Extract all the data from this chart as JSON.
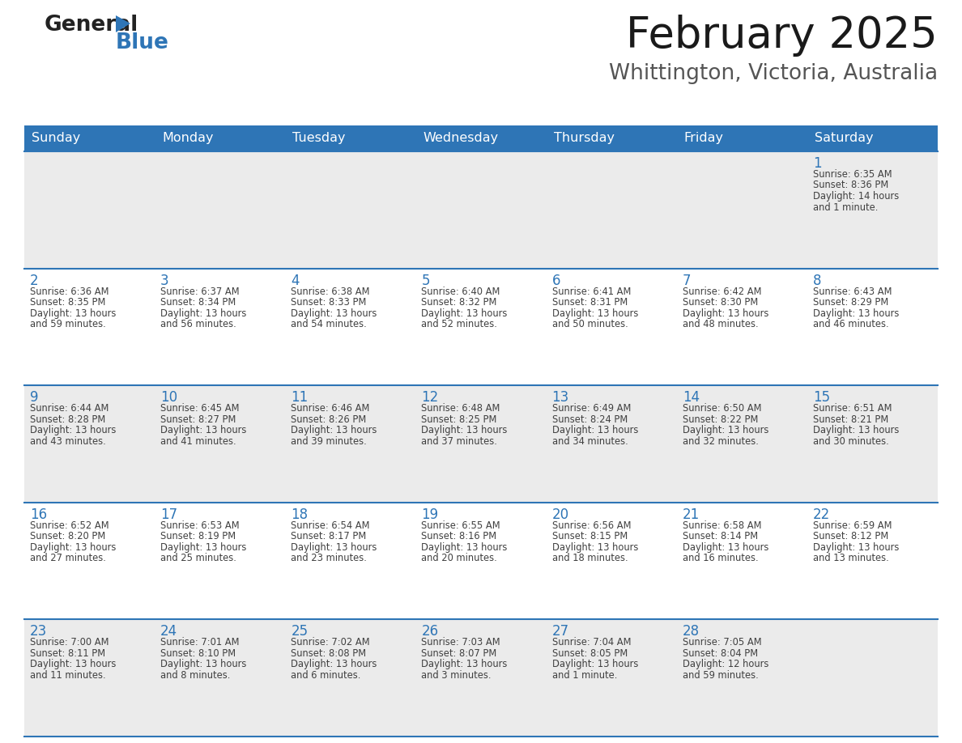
{
  "title": "February 2025",
  "subtitle": "Whittington, Victoria, Australia",
  "header_bg": "#2E75B6",
  "header_text_color": "#FFFFFF",
  "cell_bg_odd": "#EBEBEB",
  "cell_bg_even": "#FFFFFF",
  "day_number_color": "#2E75B6",
  "info_text_color": "#404040",
  "border_color": "#2E75B6",
  "days_of_week": [
    "Sunday",
    "Monday",
    "Tuesday",
    "Wednesday",
    "Thursday",
    "Friday",
    "Saturday"
  ],
  "weeks": [
    [
      {
        "day": null,
        "info": null
      },
      {
        "day": null,
        "info": null
      },
      {
        "day": null,
        "info": null
      },
      {
        "day": null,
        "info": null
      },
      {
        "day": null,
        "info": null
      },
      {
        "day": null,
        "info": null
      },
      {
        "day": "1",
        "info": "Sunrise: 6:35 AM\nSunset: 8:36 PM\nDaylight: 14 hours\nand 1 minute."
      }
    ],
    [
      {
        "day": "2",
        "info": "Sunrise: 6:36 AM\nSunset: 8:35 PM\nDaylight: 13 hours\nand 59 minutes."
      },
      {
        "day": "3",
        "info": "Sunrise: 6:37 AM\nSunset: 8:34 PM\nDaylight: 13 hours\nand 56 minutes."
      },
      {
        "day": "4",
        "info": "Sunrise: 6:38 AM\nSunset: 8:33 PM\nDaylight: 13 hours\nand 54 minutes."
      },
      {
        "day": "5",
        "info": "Sunrise: 6:40 AM\nSunset: 8:32 PM\nDaylight: 13 hours\nand 52 minutes."
      },
      {
        "day": "6",
        "info": "Sunrise: 6:41 AM\nSunset: 8:31 PM\nDaylight: 13 hours\nand 50 minutes."
      },
      {
        "day": "7",
        "info": "Sunrise: 6:42 AM\nSunset: 8:30 PM\nDaylight: 13 hours\nand 48 minutes."
      },
      {
        "day": "8",
        "info": "Sunrise: 6:43 AM\nSunset: 8:29 PM\nDaylight: 13 hours\nand 46 minutes."
      }
    ],
    [
      {
        "day": "9",
        "info": "Sunrise: 6:44 AM\nSunset: 8:28 PM\nDaylight: 13 hours\nand 43 minutes."
      },
      {
        "day": "10",
        "info": "Sunrise: 6:45 AM\nSunset: 8:27 PM\nDaylight: 13 hours\nand 41 minutes."
      },
      {
        "day": "11",
        "info": "Sunrise: 6:46 AM\nSunset: 8:26 PM\nDaylight: 13 hours\nand 39 minutes."
      },
      {
        "day": "12",
        "info": "Sunrise: 6:48 AM\nSunset: 8:25 PM\nDaylight: 13 hours\nand 37 minutes."
      },
      {
        "day": "13",
        "info": "Sunrise: 6:49 AM\nSunset: 8:24 PM\nDaylight: 13 hours\nand 34 minutes."
      },
      {
        "day": "14",
        "info": "Sunrise: 6:50 AM\nSunset: 8:22 PM\nDaylight: 13 hours\nand 32 minutes."
      },
      {
        "day": "15",
        "info": "Sunrise: 6:51 AM\nSunset: 8:21 PM\nDaylight: 13 hours\nand 30 minutes."
      }
    ],
    [
      {
        "day": "16",
        "info": "Sunrise: 6:52 AM\nSunset: 8:20 PM\nDaylight: 13 hours\nand 27 minutes."
      },
      {
        "day": "17",
        "info": "Sunrise: 6:53 AM\nSunset: 8:19 PM\nDaylight: 13 hours\nand 25 minutes."
      },
      {
        "day": "18",
        "info": "Sunrise: 6:54 AM\nSunset: 8:17 PM\nDaylight: 13 hours\nand 23 minutes."
      },
      {
        "day": "19",
        "info": "Sunrise: 6:55 AM\nSunset: 8:16 PM\nDaylight: 13 hours\nand 20 minutes."
      },
      {
        "day": "20",
        "info": "Sunrise: 6:56 AM\nSunset: 8:15 PM\nDaylight: 13 hours\nand 18 minutes."
      },
      {
        "day": "21",
        "info": "Sunrise: 6:58 AM\nSunset: 8:14 PM\nDaylight: 13 hours\nand 16 minutes."
      },
      {
        "day": "22",
        "info": "Sunrise: 6:59 AM\nSunset: 8:12 PM\nDaylight: 13 hours\nand 13 minutes."
      }
    ],
    [
      {
        "day": "23",
        "info": "Sunrise: 7:00 AM\nSunset: 8:11 PM\nDaylight: 13 hours\nand 11 minutes."
      },
      {
        "day": "24",
        "info": "Sunrise: 7:01 AM\nSunset: 8:10 PM\nDaylight: 13 hours\nand 8 minutes."
      },
      {
        "day": "25",
        "info": "Sunrise: 7:02 AM\nSunset: 8:08 PM\nDaylight: 13 hours\nand 6 minutes."
      },
      {
        "day": "26",
        "info": "Sunrise: 7:03 AM\nSunset: 8:07 PM\nDaylight: 13 hours\nand 3 minutes."
      },
      {
        "day": "27",
        "info": "Sunrise: 7:04 AM\nSunset: 8:05 PM\nDaylight: 13 hours\nand 1 minute."
      },
      {
        "day": "28",
        "info": "Sunrise: 7:05 AM\nSunset: 8:04 PM\nDaylight: 12 hours\nand 59 minutes."
      },
      {
        "day": null,
        "info": null
      }
    ]
  ]
}
